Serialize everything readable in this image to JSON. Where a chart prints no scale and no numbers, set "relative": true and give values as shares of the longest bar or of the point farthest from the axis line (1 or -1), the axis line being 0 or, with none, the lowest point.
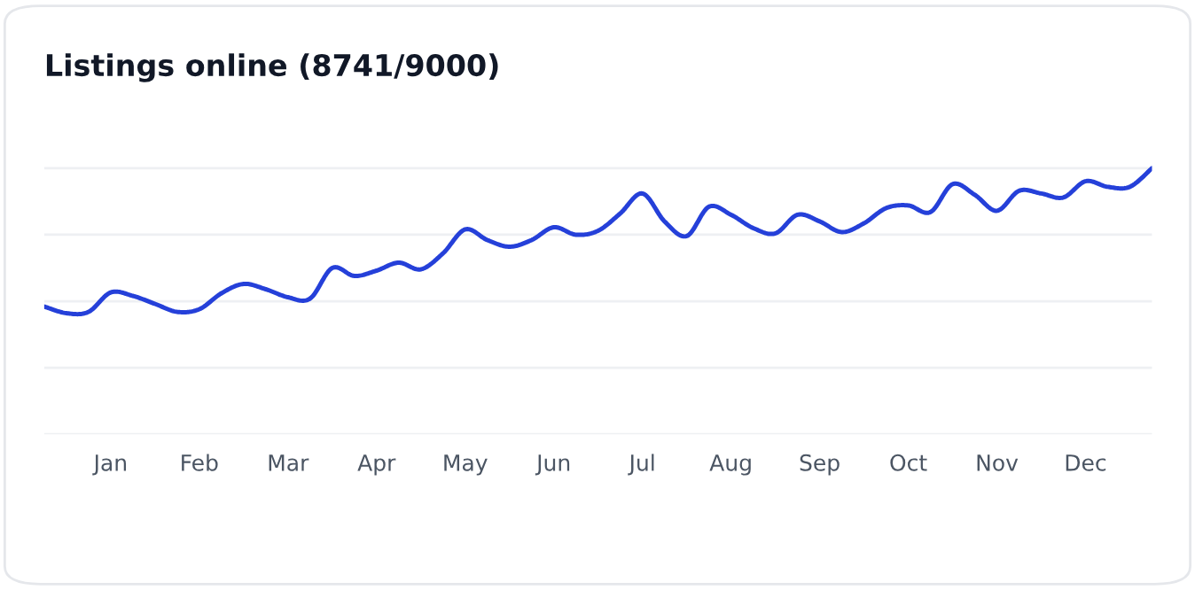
{
  "chart_data": {
    "type": "line",
    "title": "Listings online (8741/9000)",
    "relative": true,
    "categories": [
      null,
      null,
      null,
      "Jan",
      null,
      null,
      null,
      "Feb",
      null,
      null,
      null,
      "Mar",
      null,
      null,
      null,
      "Apr",
      null,
      null,
      null,
      "May",
      null,
      null,
      null,
      "Jun",
      null,
      null,
      null,
      "Jul",
      null,
      null,
      null,
      "Aug",
      null,
      null,
      null,
      "Sep",
      null,
      null,
      null,
      "Oct",
      null,
      null,
      null,
      "Nov",
      null,
      null,
      null,
      "Dec",
      null,
      null,
      null
    ],
    "series": [
      {
        "color": "#2540d9",
        "values": [
          0.48,
          0.455,
          0.46,
          0.533,
          0.52,
          0.49,
          0.46,
          0.47,
          0.53,
          0.565,
          0.545,
          0.515,
          0.51,
          0.625,
          0.595,
          0.615,
          0.645,
          0.62,
          0.68,
          0.77,
          0.73,
          0.705,
          0.73,
          0.778,
          0.75,
          0.765,
          0.83,
          0.905,
          0.8,
          0.745,
          0.855,
          0.825,
          0.775,
          0.755,
          0.825,
          0.8,
          0.76,
          0.793,
          0.85,
          0.86,
          0.835,
          0.94,
          0.9,
          0.84,
          0.915,
          0.905,
          0.89,
          0.951,
          0.93,
          0.93,
          1.0
        ]
      }
    ],
    "grid": "y",
    "marker": "none",
    "line_style": "solid",
    "tick_labels": "x"
  }
}
